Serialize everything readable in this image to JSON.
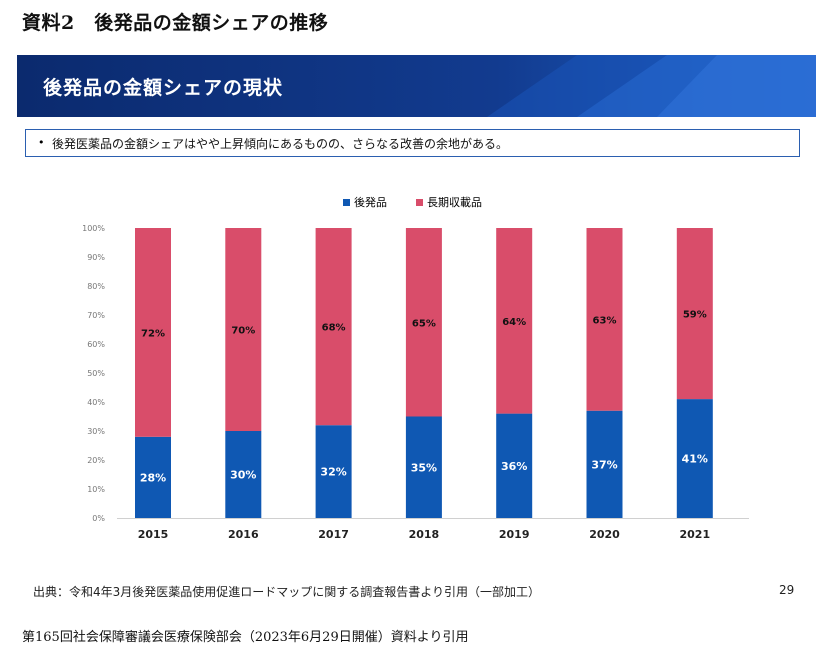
{
  "document": {
    "title": "資料2　後発品の金額シェアの推移",
    "footer": "第165回社会保障審議会医療保険部会（2023年6月29日開催）資料より引用"
  },
  "slide": {
    "banner_title": "後発品の金額シェアの現状",
    "bullet": "後発医薬品の金額シェアはやや上昇傾向にあるものの、さらなる改善の余地がある。",
    "source": "出典：令和4年3月後発医薬品使用促進ロードマップに関する調査報告書より引用（一部加工）",
    "page_number": "29"
  },
  "colors": {
    "generic": "#0f58b3",
    "long_listed": "#d94d6a",
    "banner": "#0e2f7a"
  },
  "chart_data": {
    "type": "bar",
    "stacked": true,
    "categories": [
      "2015",
      "2016",
      "2017",
      "2018",
      "2019",
      "2020",
      "2021"
    ],
    "series": [
      {
        "name": "後発品",
        "values": [
          28,
          30,
          32,
          35,
          36,
          37,
          41
        ],
        "labels": [
          "28%",
          "30%",
          "32%",
          "35%",
          "36%",
          "37%",
          "41%"
        ]
      },
      {
        "name": "長期収載品",
        "values": [
          72,
          70,
          68,
          65,
          64,
          63,
          59
        ],
        "labels": [
          "72%",
          "70%",
          "68%",
          "65%",
          "64%",
          "63%",
          "59%"
        ]
      }
    ],
    "yticks": [
      "0%",
      "10%",
      "20%",
      "30%",
      "40%",
      "50%",
      "60%",
      "70%",
      "80%",
      "90%",
      "100%"
    ],
    "ylim": [
      0,
      100
    ],
    "legend_position": "top-center"
  }
}
